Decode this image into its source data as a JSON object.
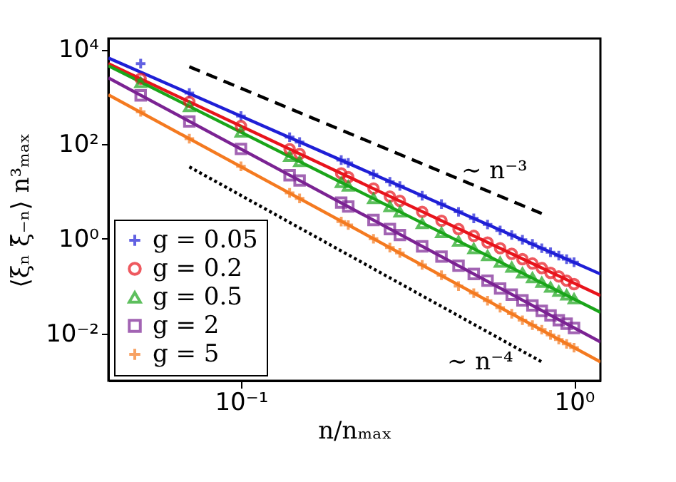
{
  "chart_data": {
    "type": "scatter",
    "xlabel": "n/nₘₐₓ",
    "ylabel": "⟨ξₙ ξ̄₋ₙ⟩ n³ₘₐₓ",
    "log": "xy",
    "xlim": [
      0.04,
      1.2
    ],
    "ylim": [
      0.001,
      17000
    ],
    "xticks": [
      {
        "value": 0.1,
        "label": "10⁻¹"
      },
      {
        "value": 1,
        "label": "10⁰"
      }
    ],
    "yticks": [
      {
        "value": 0.01,
        "label": "10⁻²"
      },
      {
        "value": 1,
        "label": "10⁰"
      },
      {
        "value": 100,
        "label": "10²"
      },
      {
        "value": 10000,
        "label": "10⁴"
      }
    ],
    "legend": "bottom left",
    "series": [
      {
        "type": "line",
        "color": "#1f1fd6",
        "line_style": "solid",
        "x": [
          0.04,
          1.2
        ],
        "values": [
          6600,
          0.18
        ]
      },
      {
        "type": "line",
        "color": "#e8141c",
        "line_style": "solid",
        "x": [
          0.04,
          1.2
        ],
        "values": [
          5000,
          0.063
        ]
      },
      {
        "type": "line",
        "color": "#1aa51a",
        "line_style": "solid",
        "x": [
          0.04,
          1.2
        ],
        "values": [
          4500,
          0.028
        ]
      },
      {
        "type": "line",
        "color": "#7b2393",
        "line_style": "solid",
        "x": [
          0.04,
          1.2
        ],
        "values": [
          2500,
          0.0066
        ]
      },
      {
        "type": "line",
        "color": "#f47a20",
        "line_style": "solid",
        "x": [
          0.04,
          1.2
        ],
        "values": [
          1100,
          0.0025
        ]
      },
      {
        "type": "line",
        "color": "#000000",
        "line_style": "dashed",
        "x": [
          0.07,
          0.8
        ],
        "values": [
          4300,
          3.4
        ]
      },
      {
        "type": "line",
        "color": "#000000",
        "line_style": "dotted",
        "x": [
          0.07,
          0.8
        ],
        "values": [
          33,
          0.0025
        ]
      },
      {
        "name": "g = 0.05",
        "color": "#1f1fd6",
        "marker": "cross",
        "x": [
          0.05,
          0.07,
          0.1,
          0.14,
          0.15,
          0.2,
          0.21,
          0.25,
          0.28,
          0.3,
          0.35,
          0.4,
          0.45,
          0.5,
          0.55,
          0.6,
          0.65,
          0.7,
          0.75,
          0.8,
          0.85,
          0.9,
          0.95,
          1.0
        ],
        "values": [
          5000,
          1200,
          390,
          140,
          110,
          46,
          40,
          23,
          16,
          13,
          8.1,
          5.4,
          3.7,
          2.7,
          2.0,
          1.5,
          1.2,
          0.95,
          0.78,
          0.63,
          0.52,
          0.44,
          0.37,
          0.32
        ]
      },
      {
        "name": "g = 0.2",
        "color": "#e8141c",
        "marker": "circle",
        "x": [
          0.05,
          0.07,
          0.1,
          0.14,
          0.15,
          0.2,
          0.21,
          0.25,
          0.28,
          0.3,
          0.35,
          0.4,
          0.45,
          0.5,
          0.55,
          0.6,
          0.65,
          0.7,
          0.75,
          0.8,
          0.85,
          0.9,
          0.95,
          1.0
        ],
        "values": [
          2400,
          780,
          240,
          78,
          62,
          24,
          20,
          11.5,
          7.8,
          6.3,
          3.7,
          2.4,
          1.6,
          1.15,
          0.83,
          0.63,
          0.48,
          0.37,
          0.3,
          0.24,
          0.19,
          0.16,
          0.13,
          0.11
        ]
      },
      {
        "name": "g = 0.5",
        "color": "#1aa51a",
        "marker": "triangle",
        "x": [
          0.05,
          0.07,
          0.1,
          0.14,
          0.15,
          0.2,
          0.21,
          0.25,
          0.28,
          0.3,
          0.35,
          0.4,
          0.45,
          0.5,
          0.55,
          0.6,
          0.65,
          0.7,
          0.75,
          0.8,
          0.85,
          0.9,
          0.95,
          1.0
        ],
        "values": [
          2000,
          620,
          180,
          55,
          43,
          15.5,
          13,
          7.1,
          4.8,
          3.7,
          2.1,
          1.35,
          0.89,
          0.62,
          0.44,
          0.32,
          0.25,
          0.19,
          0.15,
          0.12,
          0.095,
          0.078,
          0.065,
          0.054
        ]
      },
      {
        "name": "g = 2",
        "color": "#7b2393",
        "marker": "square",
        "x": [
          0.05,
          0.07,
          0.1,
          0.14,
          0.15,
          0.2,
          0.21,
          0.25,
          0.28,
          0.3,
          0.35,
          0.4,
          0.45,
          0.5,
          0.55,
          0.6,
          0.65,
          0.7,
          0.75,
          0.8,
          0.85,
          0.9,
          0.95,
          1.0
        ],
        "values": [
          1070,
          300,
          79,
          22,
          17,
          5.8,
          4.8,
          2.5,
          1.6,
          1.2,
          0.69,
          0.42,
          0.27,
          0.18,
          0.13,
          0.089,
          0.066,
          0.05,
          0.039,
          0.03,
          0.024,
          0.019,
          0.016,
          0.013
        ]
      },
      {
        "name": "g = 5",
        "color": "#f47a20",
        "marker": "cross",
        "x": [
          0.05,
          0.07,
          0.1,
          0.14,
          0.15,
          0.2,
          0.21,
          0.25,
          0.28,
          0.3,
          0.35,
          0.4,
          0.45,
          0.5,
          0.55,
          0.6,
          0.65,
          0.7,
          0.75,
          0.8,
          0.85,
          0.9,
          0.95,
          1.0
        ],
        "values": [
          480,
          130,
          34,
          9.3,
          7.1,
          2.3,
          1.95,
          1.0,
          0.65,
          0.5,
          0.28,
          0.17,
          0.1,
          0.071,
          0.049,
          0.035,
          0.026,
          0.019,
          0.015,
          0.012,
          0.0093,
          0.0074,
          0.006,
          0.005
        ]
      }
    ],
    "annotations": [
      "∼ n⁻³",
      "∼ n⁻⁴"
    ]
  }
}
